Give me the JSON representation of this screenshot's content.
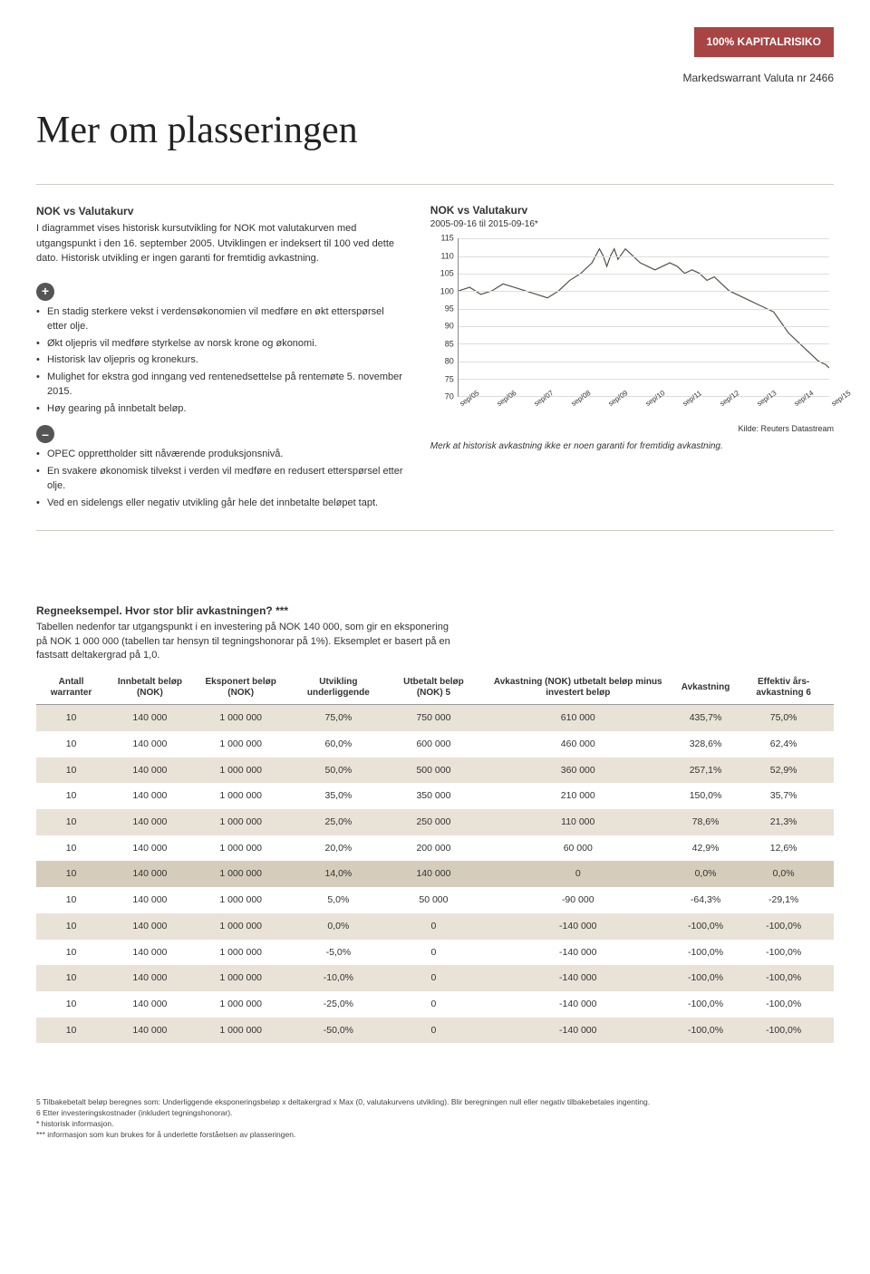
{
  "header": {
    "badge": "100% KAPITALRISIKO",
    "subtitle": "Markedswarrant Valuta nr 2466",
    "title": "Mer om plasseringen"
  },
  "left": {
    "heading": "NOK vs Valutakurv",
    "intro": "I diagrammet vises historisk kursutvikling for NOK mot valutakurven med utgangspunkt i den 16. september 2005. Utviklingen er indeksert til 100 ved dette dato. Historisk utvikling er ingen garanti for fremtidig avkastning.",
    "plus_items": [
      "En stadig sterkere vekst i verdensøkonomien vil medføre en økt etterspørsel etter olje.",
      "Økt oljepris vil medføre styrkelse av norsk krone og økonomi.",
      "Historisk lav oljepris og kronekurs.",
      "Mulighet for ekstra god inngang ved rentenedsettelse på rentemøte 5. november 2015.",
      "Høy gearing på innbetalt beløp."
    ],
    "minus_items": [
      "OPEC opprettholder sitt nåværende produksjonsnivå.",
      "En svakere økonomisk tilvekst i verden vil medføre en redusert etterspørsel etter olje.",
      "Ved en sidelengs eller negativ utvikling går hele det innbetalte beløpet tapt."
    ]
  },
  "chart": {
    "title": "NOK vs Valutakurv",
    "subtitle": "2005-09-16 til 2015-09-16*",
    "ylim": [
      70,
      115
    ],
    "ytick_step": 5,
    "yticks": [
      115,
      110,
      105,
      100,
      95,
      90,
      85,
      80,
      75,
      70
    ],
    "xlabels": [
      "sep/05",
      "sep/06",
      "sep/07",
      "sep/08",
      "sep/09",
      "sep/10",
      "sep/11",
      "sep/12",
      "sep/13",
      "sep/14",
      "sep/15"
    ],
    "line_color": "#5a5048",
    "grid_color": "#dddddd",
    "background_color": "#ffffff",
    "series": [
      [
        0,
        100
      ],
      [
        0.03,
        101
      ],
      [
        0.06,
        99
      ],
      [
        0.09,
        100
      ],
      [
        0.12,
        102
      ],
      [
        0.15,
        101
      ],
      [
        0.18,
        100
      ],
      [
        0.21,
        99
      ],
      [
        0.24,
        98
      ],
      [
        0.27,
        100
      ],
      [
        0.3,
        103
      ],
      [
        0.33,
        105
      ],
      [
        0.36,
        108
      ],
      [
        0.38,
        112
      ],
      [
        0.39,
        110
      ],
      [
        0.4,
        107
      ],
      [
        0.41,
        110
      ],
      [
        0.42,
        112
      ],
      [
        0.43,
        109
      ],
      [
        0.45,
        112
      ],
      [
        0.47,
        110
      ],
      [
        0.49,
        108
      ],
      [
        0.51,
        107
      ],
      [
        0.53,
        106
      ],
      [
        0.55,
        107
      ],
      [
        0.57,
        108
      ],
      [
        0.59,
        107
      ],
      [
        0.61,
        105
      ],
      [
        0.63,
        106
      ],
      [
        0.65,
        105
      ],
      [
        0.67,
        103
      ],
      [
        0.69,
        104
      ],
      [
        0.71,
        102
      ],
      [
        0.73,
        100
      ],
      [
        0.75,
        99
      ],
      [
        0.77,
        98
      ],
      [
        0.79,
        97
      ],
      [
        0.81,
        96
      ],
      [
        0.83,
        95
      ],
      [
        0.85,
        94
      ],
      [
        0.87,
        91
      ],
      [
        0.89,
        88
      ],
      [
        0.91,
        86
      ],
      [
        0.93,
        84
      ],
      [
        0.95,
        82
      ],
      [
        0.97,
        80
      ],
      [
        0.99,
        79
      ],
      [
        1.0,
        78
      ]
    ],
    "source": "Kilde: Reuters Datastream",
    "note": "Merk at historisk avkastning ikke er noen garanti for fremtidig avkastning."
  },
  "table_section": {
    "heading": "Regneeksempel. Hvor stor blir avkastningen? ***",
    "desc": "Tabellen nedenfor tar utgangspunkt i en investering på NOK 140 000, som gir en eksponering på NOK 1 000 000 (tabellen tar hensyn til tegningshonorar på 1%). Eksemplet er basert på en fastsatt deltakergrad på 1,0.",
    "columns": [
      "Antall warranter",
      "Innbetalt beløp (NOK)",
      "Eksponert beløp (NOK)",
      "Utvikling underliggende",
      "Utbetalt beløp (NOK) 5",
      "Avkastning (NOK) utbetalt beløp minus investert beløp",
      "Avkastning",
      "Effektiv års-avkastning 6"
    ],
    "highlight_row_index": 6,
    "rows": [
      [
        "10",
        "140 000",
        "1 000 000",
        "75,0%",
        "750 000",
        "610 000",
        "435,7%",
        "75,0%"
      ],
      [
        "10",
        "140 000",
        "1 000 000",
        "60,0%",
        "600 000",
        "460 000",
        "328,6%",
        "62,4%"
      ],
      [
        "10",
        "140 000",
        "1 000 000",
        "50,0%",
        "500 000",
        "360 000",
        "257,1%",
        "52,9%"
      ],
      [
        "10",
        "140 000",
        "1 000 000",
        "35,0%",
        "350 000",
        "210 000",
        "150,0%",
        "35,7%"
      ],
      [
        "10",
        "140 000",
        "1 000 000",
        "25,0%",
        "250 000",
        "110 000",
        "78,6%",
        "21,3%"
      ],
      [
        "10",
        "140 000",
        "1 000 000",
        "20,0%",
        "200 000",
        "60 000",
        "42,9%",
        "12,6%"
      ],
      [
        "10",
        "140 000",
        "1 000 000",
        "14,0%",
        "140 000",
        "0",
        "0,0%",
        "0,0%"
      ],
      [
        "10",
        "140 000",
        "1 000 000",
        "5,0%",
        "50 000",
        "-90 000",
        "-64,3%",
        "-29,1%"
      ],
      [
        "10",
        "140 000",
        "1 000 000",
        "0,0%",
        "0",
        "-140 000",
        "-100,0%",
        "-100,0%"
      ],
      [
        "10",
        "140 000",
        "1 000 000",
        "-5,0%",
        "0",
        "-140 000",
        "-100,0%",
        "-100,0%"
      ],
      [
        "10",
        "140 000",
        "1 000 000",
        "-10,0%",
        "0",
        "-140 000",
        "-100,0%",
        "-100,0%"
      ],
      [
        "10",
        "140 000",
        "1 000 000",
        "-25,0%",
        "0",
        "-140 000",
        "-100,0%",
        "-100,0%"
      ],
      [
        "10",
        "140 000",
        "1 000 000",
        "-50,0%",
        "0",
        "-140 000",
        "-100,0%",
        "-100,0%"
      ]
    ]
  },
  "footnotes": [
    "5  Tilbakebetalt beløp beregnes som: Underliggende eksponeringsbeløp x deltakergrad x Max (0, valutakurvens utvikling). Blir beregningen null eller negativ tilbakebetales ingenting.",
    "6  Etter investeringskostnader (inkludert tegningshonorar).",
    "*  historisk informasjon.",
    "*** informasjon som kun brukes for å underlette forståelsen av plasseringen."
  ]
}
